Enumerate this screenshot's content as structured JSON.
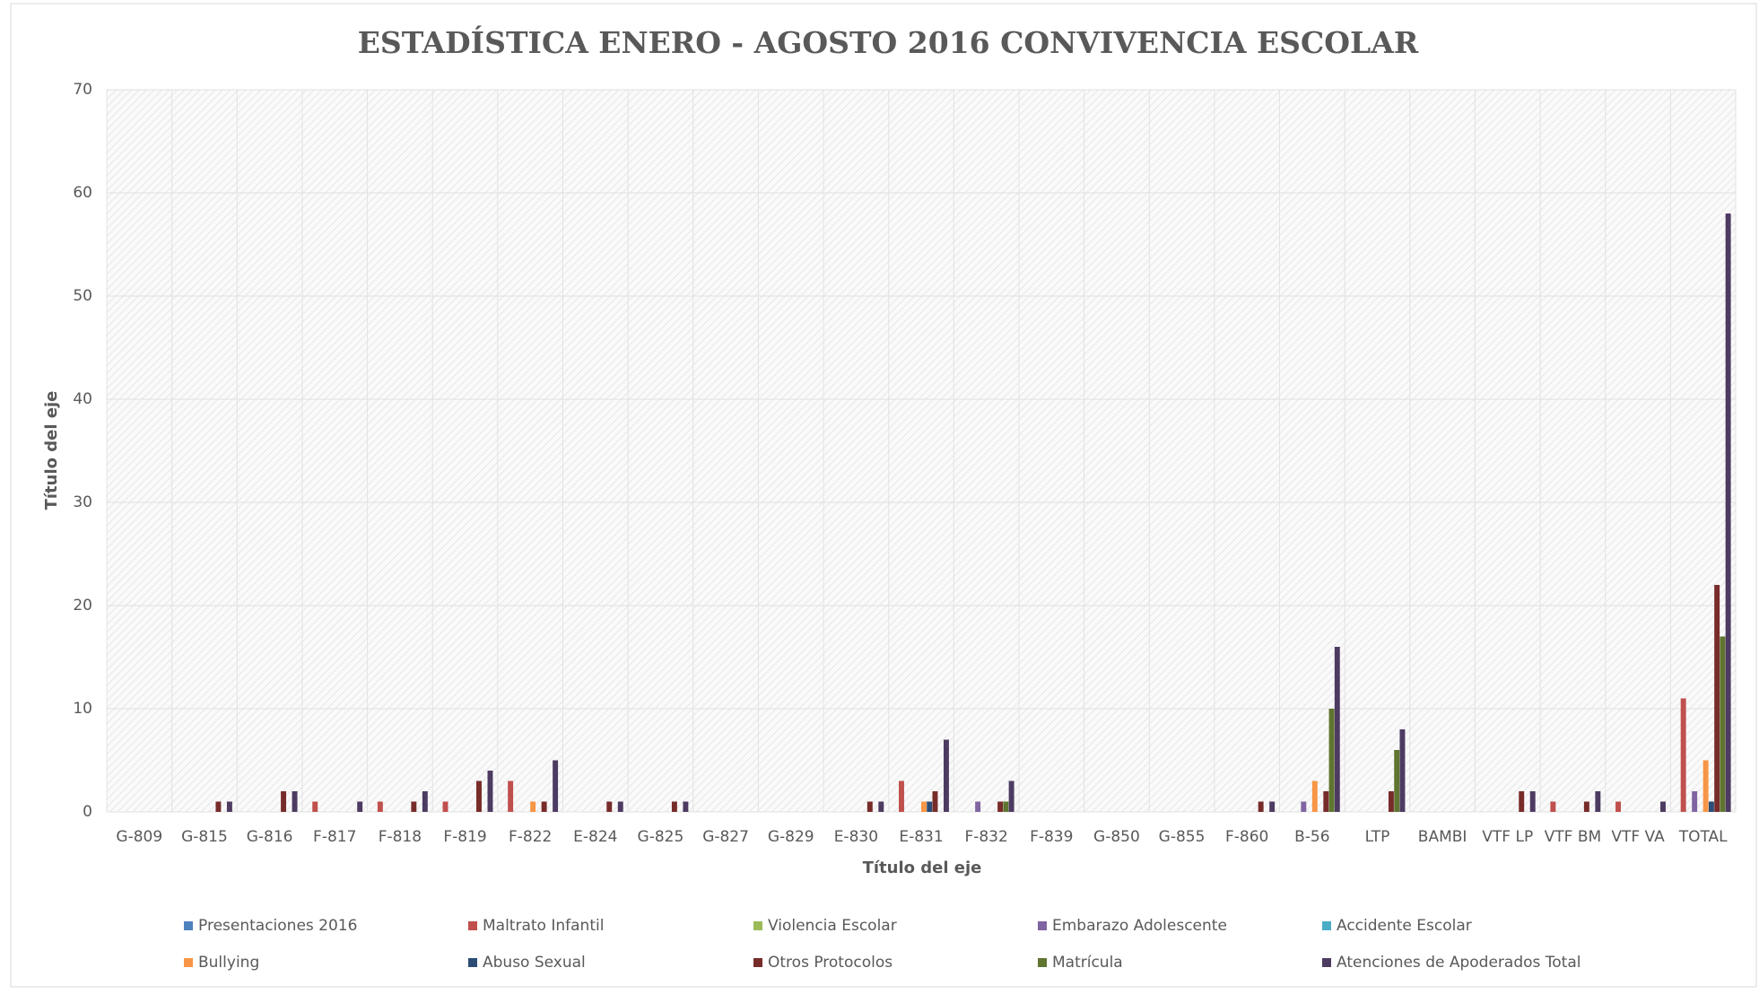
{
  "chart_data": {
    "type": "bar",
    "title": "ESTADÍSTICA ENERO - AGOSTO 2016 CONVIVENCIA ESCOLAR",
    "x_label": "Título del eje",
    "y_label": "Título del eje",
    "categories": [
      "G-809",
      "G-815",
      "G-816",
      "F-817",
      "F-818",
      "F-819",
      "F-822",
      "E-824",
      "G-825",
      "G-827",
      "G-829",
      "E-830",
      "E-831",
      "F-832",
      "F-839",
      "G-850",
      "G-855",
      "F-860",
      "B-56",
      "LTP",
      "BAMBI",
      "VTF LP",
      "VTF BM",
      "VTF VA",
      "TOTAL"
    ],
    "series": [
      {
        "name": "Presentaciones 2016",
        "color": "#4f81bd",
        "values": [
          0,
          0,
          0,
          0,
          0,
          0,
          0,
          0,
          0,
          0,
          0,
          0,
          0,
          0,
          0,
          0,
          0,
          0,
          0,
          0,
          0,
          0,
          0,
          0,
          0
        ]
      },
      {
        "name": "Maltrato Infantil",
        "color": "#c0504d",
        "values": [
          0,
          0,
          0,
          1,
          1,
          1,
          3,
          0,
          0,
          0,
          0,
          0,
          3,
          0,
          0,
          0,
          0,
          0,
          0,
          0,
          0,
          0,
          1,
          1,
          11
        ]
      },
      {
        "name": "Violencia Escolar",
        "color": "#9bbb59",
        "values": [
          0,
          0,
          0,
          0,
          0,
          0,
          0,
          0,
          0,
          0,
          0,
          0,
          0,
          0,
          0,
          0,
          0,
          0,
          0,
          0,
          0,
          0,
          0,
          0,
          0
        ]
      },
      {
        "name": "Embarazo Adolescente",
        "color": "#8064a2",
        "values": [
          0,
          0,
          0,
          0,
          0,
          0,
          0,
          0,
          0,
          0,
          0,
          0,
          0,
          1,
          0,
          0,
          0,
          0,
          1,
          0,
          0,
          0,
          0,
          0,
          2
        ]
      },
      {
        "name": "Accidente Escolar",
        "color": "#4bacc6",
        "values": [
          0,
          0,
          0,
          0,
          0,
          0,
          0,
          0,
          0,
          0,
          0,
          0,
          0,
          0,
          0,
          0,
          0,
          0,
          0,
          0,
          0,
          0,
          0,
          0,
          0
        ]
      },
      {
        "name": "Bullying",
        "color": "#f79646",
        "values": [
          0,
          0,
          0,
          0,
          0,
          0,
          1,
          0,
          0,
          0,
          0,
          0,
          1,
          0,
          0,
          0,
          0,
          0,
          3,
          0,
          0,
          0,
          0,
          0,
          5
        ]
      },
      {
        "name": "Abuso Sexual",
        "color": "#2c4d75",
        "values": [
          0,
          0,
          0,
          0,
          0,
          0,
          0,
          0,
          0,
          0,
          0,
          0,
          1,
          0,
          0,
          0,
          0,
          0,
          0,
          0,
          0,
          0,
          0,
          0,
          1
        ]
      },
      {
        "name": "Otros Protocolos",
        "color": "#772c2a",
        "values": [
          0,
          1,
          2,
          0,
          1,
          3,
          1,
          1,
          1,
          0,
          0,
          1,
          2,
          1,
          0,
          0,
          0,
          1,
          2,
          2,
          0,
          2,
          1,
          0,
          22
        ]
      },
      {
        "name": "Matrícula",
        "color": "#5f7530",
        "values": [
          0,
          0,
          0,
          0,
          0,
          0,
          0,
          0,
          0,
          0,
          0,
          0,
          0,
          1,
          0,
          0,
          0,
          0,
          10,
          6,
          0,
          0,
          0,
          0,
          17
        ]
      },
      {
        "name": "Atenciones de Apoderados Total",
        "color": "#4d3b62",
        "values": [
          0,
          1,
          2,
          1,
          2,
          4,
          5,
          1,
          1,
          0,
          0,
          1,
          7,
          3,
          0,
          0,
          0,
          1,
          16,
          8,
          0,
          2,
          2,
          1,
          58
        ]
      }
    ],
    "ylim": [
      0,
      70
    ],
    "yticks": [
      0,
      10,
      20,
      30,
      40,
      50,
      60,
      70
    ],
    "grid": true
  }
}
